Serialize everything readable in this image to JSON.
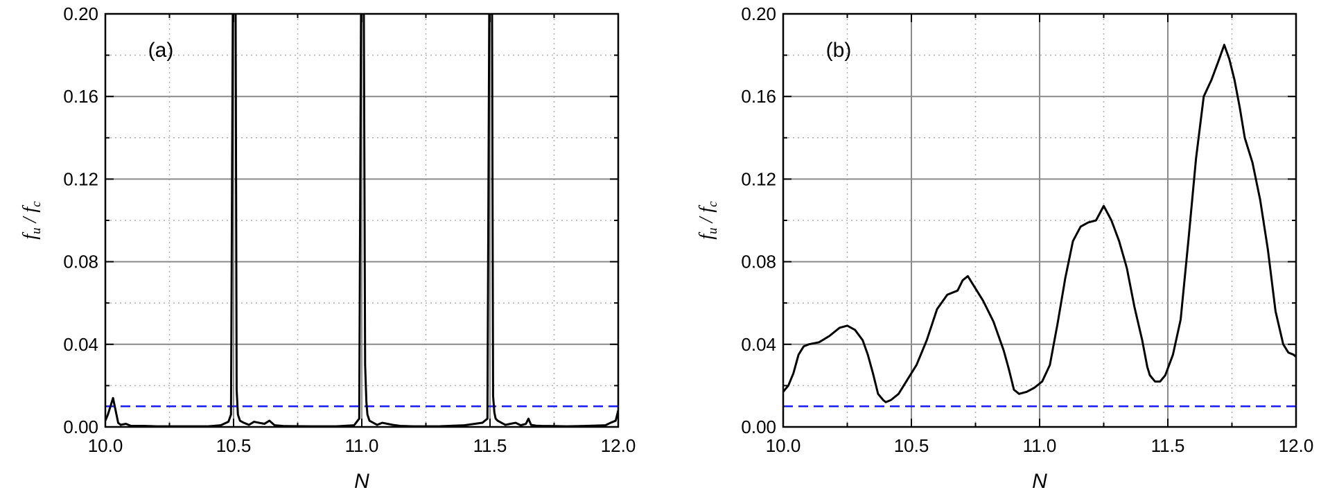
{
  "chart_data": [
    {
      "type": "line",
      "panel_label": "(a)",
      "xlabel": "N",
      "ylabel": "f̄u / f̄c",
      "ylabel_parts": {
        "f1": "f",
        "s1": "u",
        "slash": "/",
        "f2": "f",
        "s2": "c"
      },
      "xlim": [
        10.0,
        12.0
      ],
      "ylim": [
        0.0,
        0.2
      ],
      "x_ticks": [
        "10.0",
        "10.5",
        "11.0",
        "11.5",
        "12.0"
      ],
      "y_ticks": [
        "0.00",
        "0.04",
        "0.08",
        "0.12",
        "0.16",
        "0.20"
      ],
      "grid": {
        "major": "solid",
        "minor": "dotted"
      },
      "threshold": {
        "y": 0.01,
        "color": "#1a1aff",
        "style": "dashed"
      },
      "series": [
        {
          "color": "#000000",
          "x": [
            10.0,
            10.01,
            10.02,
            10.03,
            10.04,
            10.05,
            10.06,
            10.08,
            10.1,
            10.15,
            10.2,
            10.3,
            10.4,
            10.45,
            10.48,
            10.49,
            10.497,
            10.502,
            10.508,
            10.512,
            10.517,
            10.525,
            10.54,
            10.56,
            10.58,
            10.6,
            10.62,
            10.64,
            10.66,
            10.7,
            10.8,
            10.9,
            10.97,
            10.99,
            10.997,
            11.002,
            11.008,
            11.013,
            11.018,
            11.022,
            11.03,
            11.045,
            11.06,
            11.08,
            11.1,
            11.12,
            11.15,
            11.2,
            11.3,
            11.4,
            11.47,
            11.49,
            11.497,
            11.503,
            11.508,
            11.512,
            11.517,
            11.522,
            11.53,
            11.545,
            11.56,
            11.58,
            11.6,
            11.62,
            11.64,
            11.65,
            11.66,
            11.68,
            11.7,
            11.75,
            11.8,
            11.85,
            11.9,
            11.95,
            11.97,
            11.99,
            12.0
          ],
          "y": [
            0.003,
            0.006,
            0.01,
            0.014,
            0.008,
            0.002,
            0.001,
            0.0015,
            0.0005,
            0.0005,
            0.0003,
            0.0003,
            0.0003,
            0.0008,
            0.0025,
            0.006,
            0.2,
            0.2,
            0.2,
            0.018,
            0.006,
            0.003,
            0.002,
            0.001,
            0.0025,
            0.002,
            0.0015,
            0.003,
            0.0008,
            0.0004,
            0.0003,
            0.0003,
            0.0008,
            0.004,
            0.2,
            0.2,
            0.2,
            0.03,
            0.012,
            0.006,
            0.003,
            0.002,
            0.001,
            0.002,
            0.0015,
            0.001,
            0.0005,
            0.0003,
            0.0003,
            0.0008,
            0.002,
            0.004,
            0.2,
            0.2,
            0.2,
            0.015,
            0.007,
            0.004,
            0.003,
            0.002,
            0.001,
            0.0015,
            0.002,
            0.0008,
            0.0015,
            0.004,
            0.001,
            0.0006,
            0.0005,
            0.0004,
            0.0003,
            0.0004,
            0.0006,
            0.0008,
            0.002,
            0.003,
            0.008
          ]
        }
      ]
    },
    {
      "type": "line",
      "panel_label": "(b)",
      "xlabel": "N",
      "ylabel": "f̄u / f̄c",
      "ylabel_parts": {
        "f1": "f",
        "s1": "u",
        "slash": "/",
        "f2": "f",
        "s2": "c"
      },
      "xlim": [
        10.0,
        12.0
      ],
      "ylim": [
        0.0,
        0.2
      ],
      "x_ticks": [
        "10.0",
        "10.5",
        "11.0",
        "11.5",
        "12.0"
      ],
      "y_ticks": [
        "0.00",
        "0.04",
        "0.08",
        "0.12",
        "0.16",
        "0.20"
      ],
      "grid": {
        "major": "solid",
        "minor": "dotted"
      },
      "threshold": {
        "y": 0.01,
        "color": "#1a1aff",
        "style": "dashed"
      },
      "series": [
        {
          "color": "#000000",
          "x": [
            10.0,
            10.02,
            10.04,
            10.06,
            10.08,
            10.1,
            10.14,
            10.18,
            10.22,
            10.25,
            10.28,
            10.31,
            10.33,
            10.35,
            10.37,
            10.39,
            10.4,
            10.42,
            10.45,
            10.48,
            10.52,
            10.56,
            10.6,
            10.64,
            10.68,
            10.7,
            10.72,
            10.75,
            10.78,
            10.82,
            10.86,
            10.88,
            10.9,
            10.92,
            10.95,
            10.98,
            11.01,
            11.04,
            11.07,
            11.1,
            11.13,
            11.16,
            11.19,
            11.22,
            11.25,
            11.28,
            11.31,
            11.34,
            11.37,
            11.4,
            11.42,
            11.43,
            11.45,
            11.47,
            11.49,
            11.52,
            11.55,
            11.58,
            11.61,
            11.64,
            11.67,
            11.7,
            11.72,
            11.74,
            11.76,
            11.78,
            11.8,
            11.83,
            11.86,
            11.89,
            11.92,
            11.95,
            11.97,
            11.99,
            12.0
          ],
          "y": [
            0.017,
            0.02,
            0.026,
            0.035,
            0.039,
            0.04,
            0.041,
            0.044,
            0.048,
            0.049,
            0.047,
            0.042,
            0.035,
            0.026,
            0.016,
            0.013,
            0.012,
            0.013,
            0.016,
            0.022,
            0.03,
            0.042,
            0.057,
            0.064,
            0.066,
            0.071,
            0.073,
            0.067,
            0.061,
            0.051,
            0.037,
            0.028,
            0.018,
            0.016,
            0.017,
            0.019,
            0.022,
            0.03,
            0.05,
            0.072,
            0.09,
            0.097,
            0.099,
            0.1,
            0.107,
            0.1,
            0.09,
            0.077,
            0.058,
            0.042,
            0.029,
            0.025,
            0.022,
            0.022,
            0.025,
            0.035,
            0.052,
            0.09,
            0.13,
            0.16,
            0.168,
            0.178,
            0.185,
            0.178,
            0.168,
            0.155,
            0.14,
            0.128,
            0.11,
            0.086,
            0.056,
            0.04,
            0.036,
            0.035,
            0.034
          ]
        }
      ]
    }
  ]
}
